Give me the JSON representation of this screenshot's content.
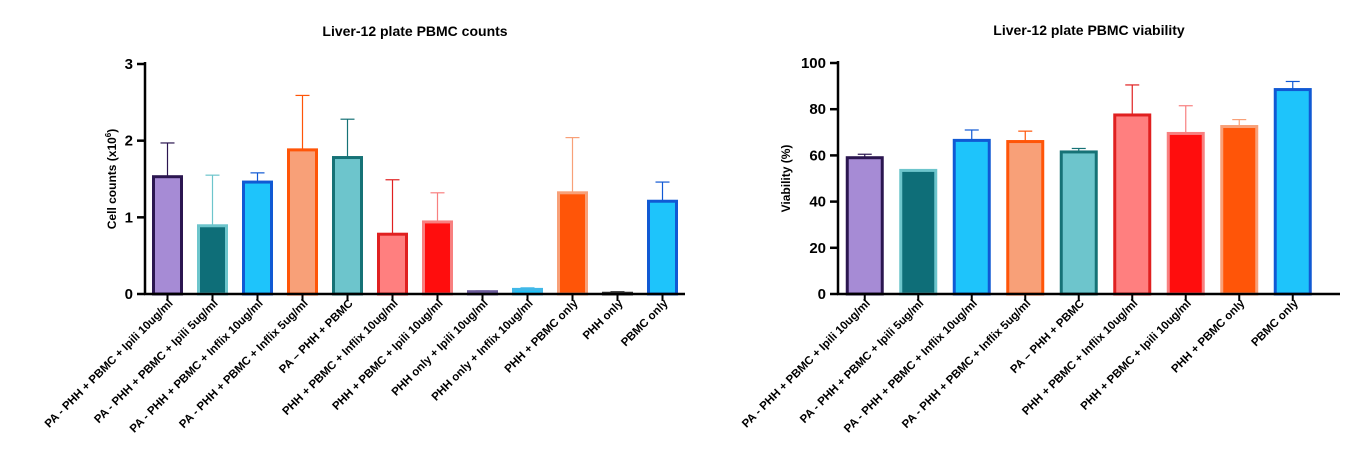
{
  "chart_data": [
    {
      "type": "bar",
      "title": "Liver-12 plate PBMC counts",
      "ylabel_main": "Cell counts (x10",
      "ylabel_sup": "6",
      "ylabel_close": ")",
      "ylim": [
        0,
        3
      ],
      "yticks": [
        "0",
        "1",
        "2",
        "3"
      ],
      "ytick_values": [
        0,
        1,
        2,
        3
      ],
      "categories": [
        "PA - PHH + PBMC + Ipili  10ug/ml",
        "PA - PHH + PBMC + Ipili 5ug/ml",
        "PA - PHH + PBMC + Inflix 10ug/ml",
        "PA - PHH + PBMC + Inflix 5ug/ml",
        "PA – PHH + PBMC",
        "PHH + PBMC + Inflix 10ug/ml",
        "PHH + PBMC + Ipili 10ug/ml",
        "PHH only + Ipili 10ug/ml",
        "PHH only + Inflix 10ug/ml",
        "PHH + PBMC only",
        "PHH only",
        "PBMC only"
      ],
      "values": [
        1.53,
        0.89,
        1.46,
        1.88,
        1.78,
        0.78,
        0.94,
        0.03,
        0.06,
        1.32,
        0.01,
        1.21
      ],
      "errors": [
        0.44,
        0.66,
        0.12,
        0.71,
        0.5,
        0.71,
        0.38,
        0.01,
        0.02,
        0.72,
        0.02,
        0.25
      ],
      "fills": [
        "#a68bd5",
        "#0e6e78",
        "#1ec4fb",
        "#f8a078",
        "#6dc5cc",
        "#ff7f7f",
        "#ff0d0d",
        "#a68bd5",
        "#1ec4fb",
        "#ff5508",
        "#a68bd5",
        "#1ec4fb"
      ],
      "strokes": [
        "#2b1650",
        "#6dc5cc",
        "#1059d4",
        "#ff5508",
        "#167276",
        "#e02020",
        "#f88080",
        "#6b5a9a",
        "#40b8e8",
        "#f8a078",
        "#333333",
        "#1059d4"
      ]
    },
    {
      "type": "bar",
      "title": "Liver-12 plate PBMC viability",
      "ylabel_main": "Viability (%)",
      "ylim": [
        0,
        100
      ],
      "yticks": [
        "0",
        "20",
        "40",
        "60",
        "80",
        "100"
      ],
      "ytick_values": [
        0,
        20,
        40,
        60,
        80,
        100
      ],
      "categories": [
        "PA - PHH + PBMC + Ipili  10ug/ml",
        "PA - PHH + PBMC + Ipili 5ug/ml",
        "PA - PHH + PBMC + Inflix 10ug/ml",
        "PA - PHH + PBMC + Inflix 5ug/ml",
        "PA – PHH + PBMC",
        "PHH + PBMC + Inflix 10ug/ml",
        "PHH + PBMC + Ipili 10ug/ml",
        "PHH + PBMC only",
        "PBMC only"
      ],
      "values": [
        59,
        53.5,
        66.5,
        66,
        61.5,
        77.5,
        69.5,
        72.5,
        88.5
      ],
      "errors": [
        1.5,
        0,
        4.5,
        4.5,
        1.5,
        13,
        12,
        3,
        3.5
      ],
      "fills": [
        "#a68bd5",
        "#0e6e78",
        "#1ec4fb",
        "#f8a078",
        "#6dc5cc",
        "#ff7f7f",
        "#ff0d0d",
        "#ff5508",
        "#1ec4fb"
      ],
      "strokes": [
        "#2b1650",
        "#6dc5cc",
        "#1059d4",
        "#ff5508",
        "#167276",
        "#e02020",
        "#f88080",
        "#f8a078",
        "#1059d4"
      ]
    }
  ]
}
